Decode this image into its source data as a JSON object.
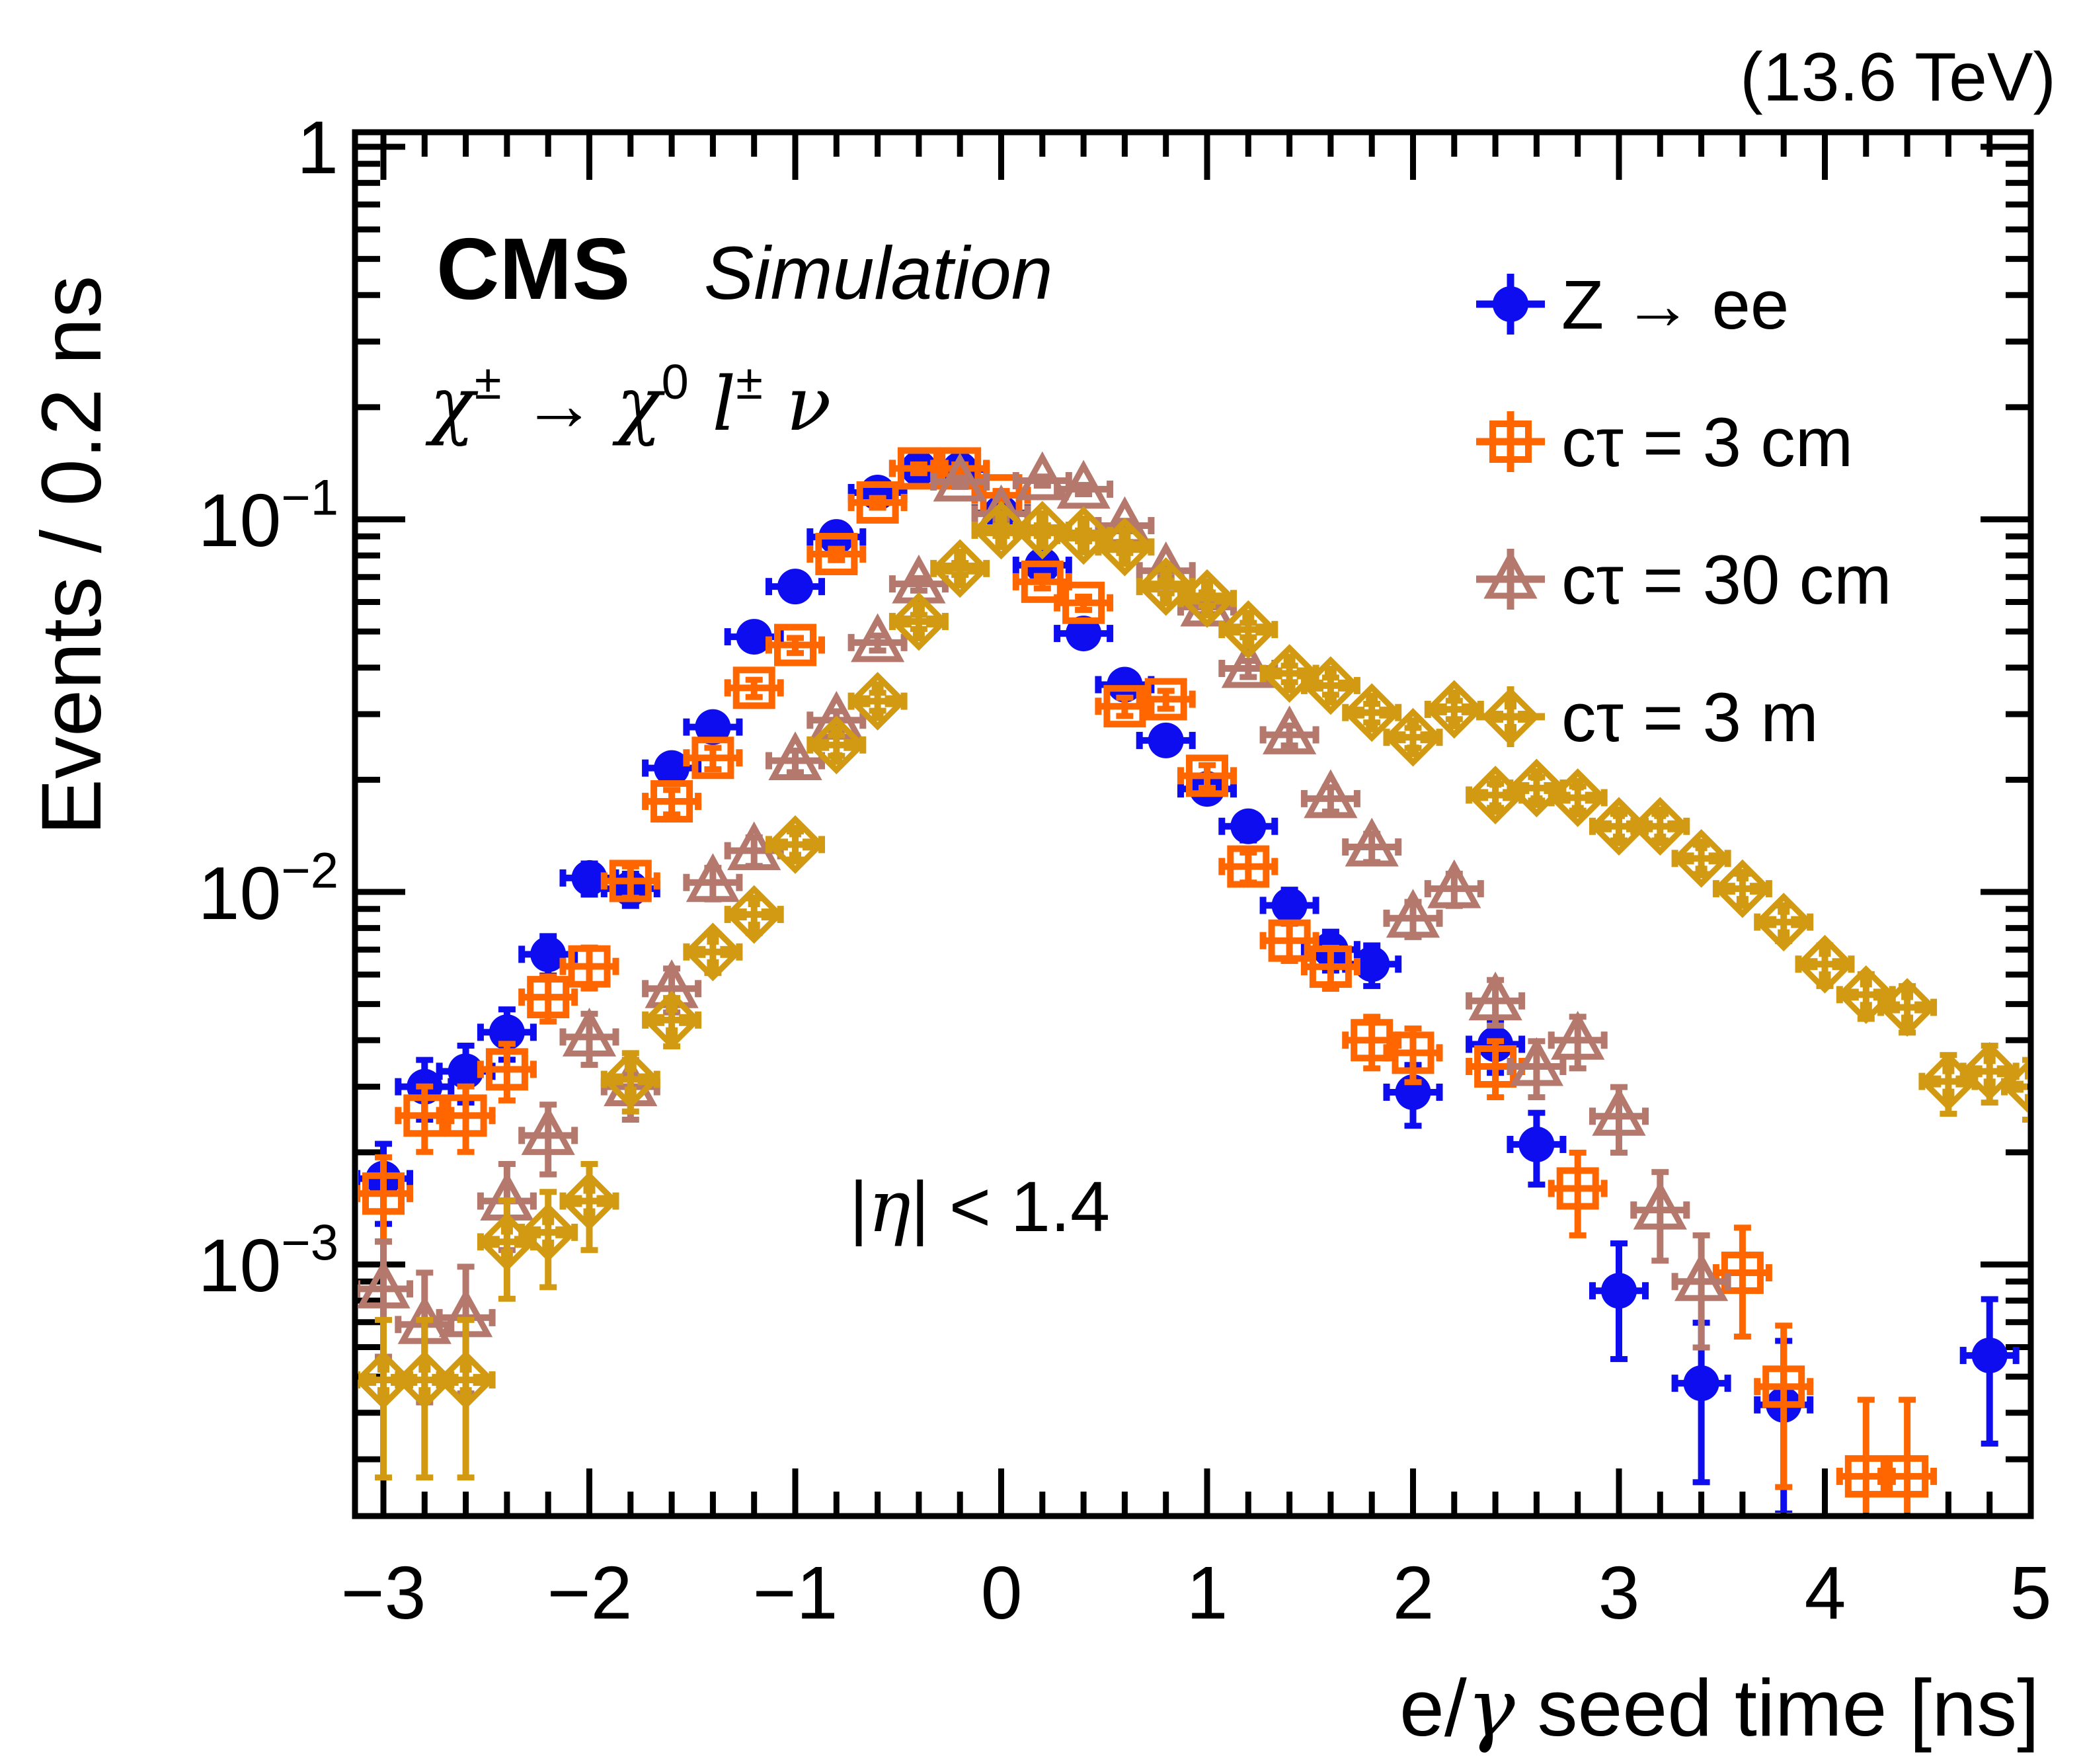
{
  "header": {
    "experiment": "CMS",
    "experiment_label": "Simulation",
    "energy": "(13.6 TeV)"
  },
  "annotations": {
    "decay_parts": [
      {
        "t": "χ",
        "it": true
      },
      {
        "t": "±",
        "sup": true
      },
      {
        "t": " → "
      },
      {
        "t": "χ",
        "it": true
      },
      {
        "t": "0",
        "sup": true
      },
      {
        "t": " l",
        "it": true
      },
      {
        "t": "±",
        "sup": true
      },
      {
        "t": " ν",
        "it": true
      }
    ],
    "eta_parts": [
      {
        "t": "|"
      },
      {
        "t": "η",
        "it": true
      },
      {
        "t": "| < 1.4"
      }
    ]
  },
  "legend": {
    "entries": [
      {
        "label": "Z → ee",
        "marker": "circle",
        "color": "#0d0df0"
      },
      {
        "label": "cτ = 3 cm",
        "marker": "square",
        "color": "#ff6600"
      },
      {
        "label": "cτ = 30 cm",
        "marker": "triangle",
        "color": "#b4786c"
      },
      {
        "label": "cτ = 3 m",
        "marker": "diamond",
        "color": "#d29a12"
      }
    ]
  },
  "axes": {
    "x": {
      "title_parts": [
        {
          "t": "e/"
        },
        {
          "t": "γ",
          "it": true
        },
        {
          "t": " seed time [ns]"
        }
      ],
      "tick_labels": [
        "−3",
        "−2",
        "−1",
        "0",
        "1",
        "2",
        "3",
        "4",
        "5"
      ],
      "tick_values": [
        -3,
        -2,
        -1,
        0,
        1,
        2,
        3,
        4,
        5
      ],
      "minor_step": 0.2,
      "range": [
        -3.14,
        5.0
      ]
    },
    "y": {
      "title": "Events / 0.2 ns",
      "scale": "log",
      "range": [
        0.00021,
        1.094
      ],
      "tick_labels": [
        {
          "v": 1,
          "parts": [
            {
              "t": "1"
            }
          ]
        },
        {
          "v": 0.1,
          "parts": [
            {
              "t": "10"
            },
            {
              "t": "−1",
              "sup": true
            }
          ]
        },
        {
          "v": 0.01,
          "parts": [
            {
              "t": "10"
            },
            {
              "t": "−2",
              "sup": true
            }
          ]
        },
        {
          "v": 0.001,
          "parts": [
            {
              "t": "10"
            },
            {
              "t": "−3",
              "sup": true
            }
          ]
        }
      ]
    }
  },
  "chart_data": {
    "type": "scatter",
    "title": "",
    "xlabel": "e/γ seed time [ns]",
    "ylabel": "Events / 0.2 ns",
    "x_range": [
      -3.14,
      5.0
    ],
    "y_range": [
      0.00021,
      1.094
    ],
    "y_scale": "log",
    "bin_width_ns": 0.2,
    "legend_position": "top-right",
    "grid": false,
    "series": [
      {
        "name": "Z → ee",
        "marker": "circle",
        "color": "#0d0df0",
        "points": [
          [
            -3.0,
            0.0017
          ],
          [
            -2.8,
            0.003
          ],
          [
            -2.6,
            0.0033
          ],
          [
            -2.4,
            0.0042
          ],
          [
            -2.2,
            0.0068
          ],
          [
            -2.0,
            0.0109
          ],
          [
            -1.8,
            0.0102
          ],
          [
            -1.6,
            0.0215
          ],
          [
            -1.4,
            0.0277
          ],
          [
            -1.2,
            0.0484
          ],
          [
            -1.0,
            0.066
          ],
          [
            -0.8,
            0.0897
          ],
          [
            -0.6,
            0.118
          ],
          [
            -0.4,
            0.137
          ],
          [
            -0.2,
            0.136
          ],
          [
            0.0,
            0.104
          ],
          [
            0.2,
            0.0753
          ],
          [
            0.4,
            0.0494
          ],
          [
            0.6,
            0.036
          ],
          [
            0.8,
            0.0255
          ],
          [
            1.0,
            0.0189
          ],
          [
            1.2,
            0.015
          ],
          [
            1.4,
            0.0092
          ],
          [
            1.6,
            0.007
          ],
          [
            1.8,
            0.0064
          ],
          [
            2.0,
            0.0029
          ],
          [
            2.4,
            0.0039
          ],
          [
            2.6,
            0.0021
          ],
          [
            3.0,
            0.00085
          ],
          [
            3.4,
            0.00048
          ],
          [
            3.8,
            0.00042
          ],
          [
            4.8,
            0.00057
          ]
        ]
      },
      {
        "name": "cτ = 3 cm",
        "marker": "square",
        "color": "#ff6600",
        "points": [
          [
            -3.0,
            0.00155
          ],
          [
            -2.8,
            0.00251
          ],
          [
            -2.6,
            0.00251
          ],
          [
            -2.4,
            0.00334
          ],
          [
            -2.2,
            0.00522
          ],
          [
            -2.0,
            0.00631
          ],
          [
            -1.8,
            0.0107
          ],
          [
            -1.6,
            0.0175
          ],
          [
            -1.4,
            0.0229
          ],
          [
            -1.2,
            0.0353
          ],
          [
            -1.0,
            0.046
          ],
          [
            -0.8,
            0.0807
          ],
          [
            -0.6,
            0.111
          ],
          [
            -0.4,
            0.137
          ],
          [
            -0.2,
            0.137
          ],
          [
            0.0,
            0.116
          ],
          [
            0.2,
            0.068
          ],
          [
            0.4,
            0.0597
          ],
          [
            0.6,
            0.0315
          ],
          [
            0.8,
            0.0329
          ],
          [
            1.0,
            0.0205
          ],
          [
            1.2,
            0.0117
          ],
          [
            1.4,
            0.0074
          ],
          [
            1.6,
            0.0063
          ],
          [
            1.8,
            0.004
          ],
          [
            2.0,
            0.0037
          ],
          [
            2.4,
            0.0034
          ],
          [
            2.8,
            0.0016
          ],
          [
            3.6,
            0.00095
          ],
          [
            3.8,
            0.00047
          ],
          [
            4.2,
            0.00027
          ],
          [
            4.4,
            0.00027
          ]
        ]
      },
      {
        "name": "cτ = 30 cm",
        "marker": "triangle",
        "color": "#b4786c",
        "points": [
          [
            -3.0,
            0.00086
          ],
          [
            -2.8,
            0.00069
          ],
          [
            -2.6,
            0.00072
          ],
          [
            -2.4,
            0.00148
          ],
          [
            -2.2,
            0.00222
          ],
          [
            -2.0,
            0.00408
          ],
          [
            -1.8,
            0.003
          ],
          [
            -1.6,
            0.0055
          ],
          [
            -1.4,
            0.0106
          ],
          [
            -1.2,
            0.0129
          ],
          [
            -1.0,
            0.0225
          ],
          [
            -0.8,
            0.0289
          ],
          [
            -0.6,
            0.0467
          ],
          [
            -0.4,
            0.0671
          ],
          [
            -0.2,
            0.126
          ],
          [
            0.0,
            0.1035
          ],
          [
            0.2,
            0.127
          ],
          [
            0.4,
            0.1205
          ],
          [
            0.6,
            0.0962
          ],
          [
            0.8,
            0.0728
          ],
          [
            1.0,
            0.0582
          ],
          [
            1.2,
            0.0398
          ],
          [
            1.4,
            0.0264
          ],
          [
            1.6,
            0.0178
          ],
          [
            1.8,
            0.0132
          ],
          [
            2.0,
            0.0085
          ],
          [
            2.2,
            0.0102
          ],
          [
            2.4,
            0.0051
          ],
          [
            2.6,
            0.0034
          ],
          [
            2.8,
            0.004
          ],
          [
            3.0,
            0.0025
          ],
          [
            3.2,
            0.0014
          ],
          [
            3.4,
            0.0009
          ]
        ]
      },
      {
        "name": "cτ = 3 m",
        "marker": "diamond",
        "color": "#d29a12",
        "points": [
          [
            -3.0,
            0.00049
          ],
          [
            -2.8,
            0.00049
          ],
          [
            -2.6,
            0.00049
          ],
          [
            -2.4,
            0.00115
          ],
          [
            -2.2,
            0.00122
          ],
          [
            -2.0,
            0.00148
          ],
          [
            -1.8,
            0.00314
          ],
          [
            -1.6,
            0.00453
          ],
          [
            -1.4,
            0.0069
          ],
          [
            -1.2,
            0.0087
          ],
          [
            -1.0,
            0.0134
          ],
          [
            -0.8,
            0.0248
          ],
          [
            -0.6,
            0.0325
          ],
          [
            -0.4,
            0.0532
          ],
          [
            -0.2,
            0.0738
          ],
          [
            0.0,
            0.0935
          ],
          [
            0.2,
            0.0935
          ],
          [
            0.4,
            0.0905
          ],
          [
            0.6,
            0.0843
          ],
          [
            0.8,
            0.066
          ],
          [
            1.0,
            0.0613
          ],
          [
            1.2,
            0.0506
          ],
          [
            1.4,
            0.0386
          ],
          [
            1.6,
            0.0358
          ],
          [
            1.8,
            0.0303
          ],
          [
            2.0,
            0.026
          ],
          [
            2.2,
            0.0309
          ],
          [
            2.4,
            0.0182
          ],
          [
            2.6,
            0.019
          ],
          [
            2.8,
            0.0179
          ],
          [
            3.0,
            0.015
          ],
          [
            3.2,
            0.015
          ],
          [
            3.4,
            0.0123
          ],
          [
            3.6,
            0.0102
          ],
          [
            3.8,
            0.0083
          ],
          [
            4.0,
            0.0064
          ],
          [
            4.2,
            0.0053
          ],
          [
            4.4,
            0.0049
          ],
          [
            4.6,
            0.0031
          ],
          [
            4.8,
            0.0033
          ],
          [
            5.0,
            0.003
          ]
        ]
      }
    ]
  }
}
